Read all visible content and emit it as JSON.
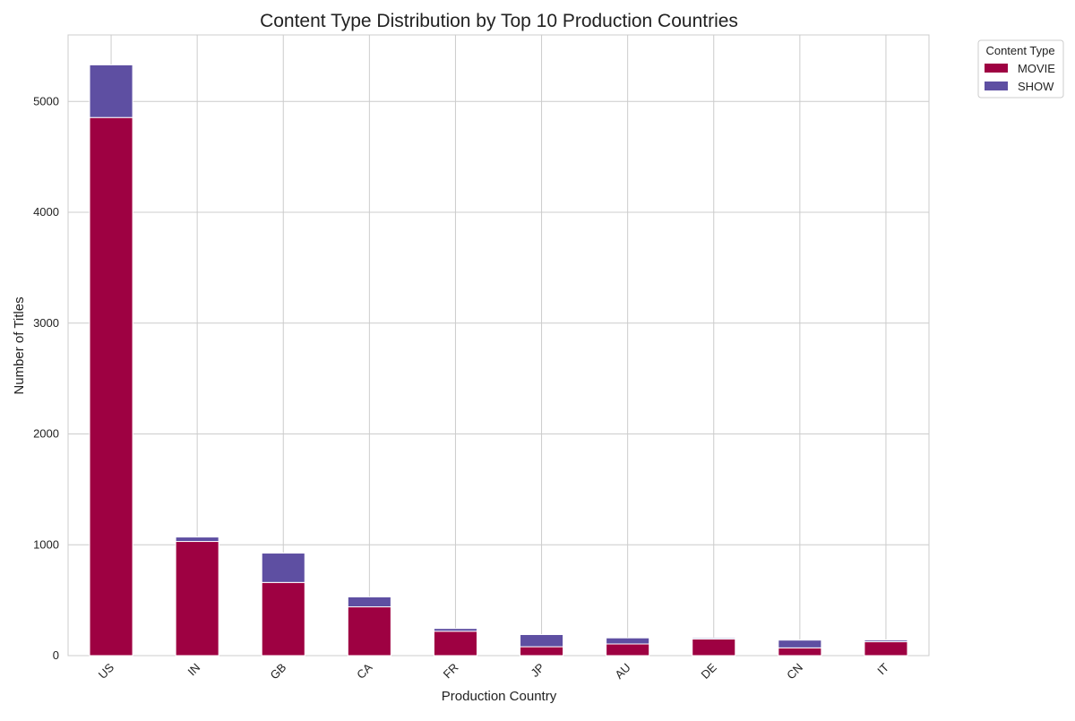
{
  "chart_data": {
    "type": "bar",
    "stacked": true,
    "title": "Content Type Distribution by Top 10 Production Countries",
    "xlabel": "Production Country",
    "ylabel": "Number of Titles",
    "categories": [
      "US",
      "IN",
      "GB",
      "CA",
      "FR",
      "JP",
      "AU",
      "DE",
      "CN",
      "IT"
    ],
    "series": [
      {
        "name": "MOVIE",
        "color": "#9e0142",
        "values": [
          4855,
          1030,
          660,
          440,
          220,
          80,
          105,
          150,
          70,
          125
        ]
      },
      {
        "name": "SHOW",
        "color": "#5e4fa2",
        "values": [
          475,
          40,
          265,
          90,
          25,
          110,
          55,
          10,
          70,
          15
        ]
      }
    ],
    "ylim": [
      0,
      5600
    ],
    "yticks": [
      0,
      1000,
      2000,
      3000,
      4000,
      5000
    ],
    "grid": true,
    "legend": {
      "title": "Content Type",
      "placement": "outside-top-right"
    }
  }
}
